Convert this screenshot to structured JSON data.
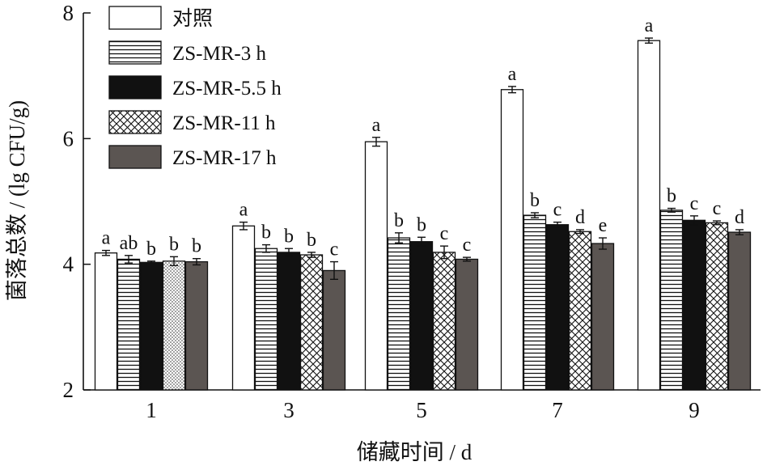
{
  "chart_data": {
    "type": "bar",
    "title": "",
    "xlabel": "储藏时间 / d",
    "ylabel": "菌落总数 / (lg CFU/g)",
    "categories": [
      "1",
      "3",
      "5",
      "7",
      "9"
    ],
    "ylim": [
      2,
      8
    ],
    "yticks": [
      2,
      4,
      6,
      8
    ],
    "legend_position": "top-left",
    "grid": false,
    "series": [
      {
        "name": "对照",
        "pattern": "open",
        "values": [
          4.18,
          4.61,
          5.95,
          6.78,
          7.56
        ],
        "errors": [
          0.04,
          0.06,
          0.07,
          0.05,
          0.04
        ],
        "letters": [
          "a",
          "a",
          "a",
          "a",
          "a"
        ]
      },
      {
        "name": "ZS-MR-3 h",
        "pattern": "horizontal-stripes",
        "values": [
          4.08,
          4.25,
          4.42,
          4.78,
          4.86
        ],
        "errors": [
          0.06,
          0.06,
          0.08,
          0.04,
          0.03
        ],
        "letters": [
          "ab",
          "b",
          "b",
          "b",
          "b"
        ]
      },
      {
        "name": "ZS-MR-5.5 h",
        "pattern": "solid-black",
        "values": [
          4.03,
          4.19,
          4.36,
          4.63,
          4.7
        ],
        "errors": [
          0.02,
          0.06,
          0.07,
          0.04,
          0.07
        ],
        "letters": [
          "b",
          "b",
          "b",
          "c",
          "c"
        ]
      },
      {
        "name": "ZS-MR-11 h",
        "pattern": "crosshatch",
        "values": [
          4.05,
          4.15,
          4.19,
          4.52,
          4.66
        ],
        "errors": [
          0.07,
          0.04,
          0.1,
          0.03,
          0.03
        ],
        "letters": [
          "b",
          "b",
          "c",
          "d",
          "c"
        ]
      },
      {
        "name": "ZS-MR-17 h",
        "pattern": "solid-gray",
        "values": [
          4.04,
          3.9,
          4.08,
          4.33,
          4.51
        ],
        "errors": [
          0.05,
          0.14,
          0.03,
          0.09,
          0.04
        ],
        "letters": [
          "b",
          "c",
          "c",
          "e",
          "d"
        ]
      }
    ],
    "day1_hatch_override": {
      "series_index": 3,
      "pattern": "dots"
    }
  },
  "colors": {
    "bar_outline": "#111111",
    "solid_gray": "#5b5552",
    "axis": "#111111"
  }
}
